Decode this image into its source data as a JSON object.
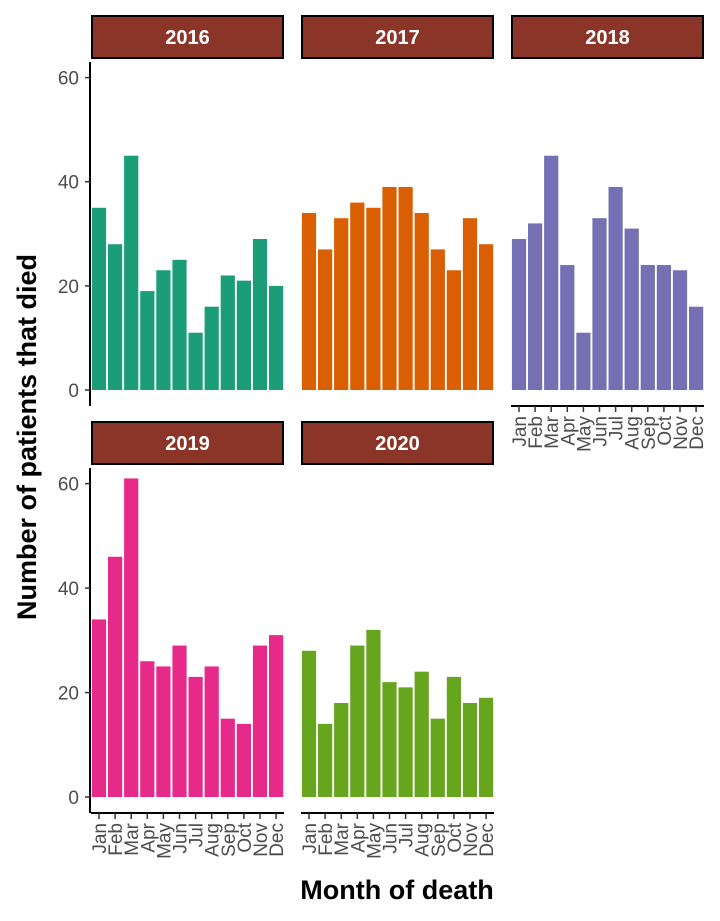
{
  "chart_data": {
    "type": "bar",
    "xlabel": "Month of death",
    "ylabel": "Number of patients that died",
    "ylim": [
      0,
      63
    ],
    "yticks": [
      0,
      20,
      40,
      60
    ],
    "categories": [
      "Jan",
      "Feb",
      "Mar",
      "Apr",
      "May",
      "Jun",
      "Jul",
      "Aug",
      "Sep",
      "Oct",
      "Nov",
      "Dec"
    ],
    "strip_color": "#8B3428",
    "series": [
      {
        "name": "2016",
        "color": "#1B9E77",
        "values": [
          35,
          28,
          45,
          19,
          23,
          25,
          11,
          16,
          22,
          21,
          29,
          20
        ]
      },
      {
        "name": "2017",
        "color": "#D95F02",
        "values": [
          34,
          27,
          33,
          36,
          35,
          39,
          39,
          34,
          27,
          23,
          33,
          28
        ]
      },
      {
        "name": "2018",
        "color": "#7570B3",
        "values": [
          29,
          32,
          45,
          24,
          11,
          33,
          39,
          31,
          24,
          24,
          23,
          16
        ]
      },
      {
        "name": "2019",
        "color": "#E7298A",
        "values": [
          34,
          46,
          61,
          26,
          25,
          29,
          23,
          25,
          15,
          14,
          29,
          31
        ]
      },
      {
        "name": "2020",
        "color": "#66A61E",
        "values": [
          28,
          14,
          18,
          29,
          32,
          22,
          21,
          24,
          15,
          23,
          18,
          19
        ]
      }
    ],
    "grid": false,
    "legend": "none"
  }
}
